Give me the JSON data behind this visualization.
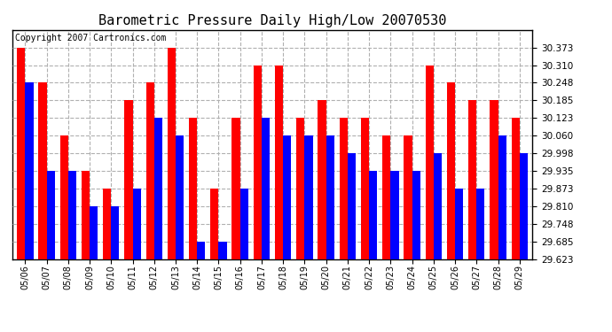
{
  "title": "Barometric Pressure Daily High/Low 20070530",
  "copyright": "Copyright 2007 Cartronics.com",
  "dates": [
    "05/06",
    "05/07",
    "05/08",
    "05/09",
    "05/10",
    "05/11",
    "05/12",
    "05/13",
    "05/14",
    "05/15",
    "05/16",
    "05/17",
    "05/18",
    "05/19",
    "05/20",
    "05/21",
    "05/22",
    "05/23",
    "05/24",
    "05/25",
    "05/26",
    "05/27",
    "05/28",
    "05/29"
  ],
  "highs": [
    30.373,
    30.248,
    30.06,
    29.935,
    29.873,
    30.185,
    30.248,
    30.373,
    30.123,
    29.873,
    30.123,
    30.31,
    30.31,
    30.123,
    30.185,
    30.123,
    30.123,
    30.06,
    30.06,
    30.31,
    30.248,
    30.185,
    30.185,
    30.123
  ],
  "lows": [
    30.248,
    29.935,
    29.935,
    29.81,
    29.81,
    29.873,
    30.123,
    30.06,
    29.685,
    29.685,
    29.873,
    30.123,
    30.06,
    30.06,
    30.06,
    29.998,
    29.935,
    29.935,
    29.935,
    29.998,
    29.873,
    29.873,
    30.06,
    29.998
  ],
  "ylim_min": 29.623,
  "ylim_max": 30.435,
  "yticks": [
    29.623,
    29.685,
    29.748,
    29.81,
    29.873,
    29.935,
    29.998,
    30.06,
    30.123,
    30.185,
    30.248,
    30.31,
    30.373
  ],
  "high_color": "#ff0000",
  "low_color": "#0000ff",
  "bg_color": "#ffffff",
  "plot_bg_color": "#ffffff",
  "grid_color": "#b0b0b0",
  "title_fontsize": 11,
  "copyright_fontsize": 7
}
